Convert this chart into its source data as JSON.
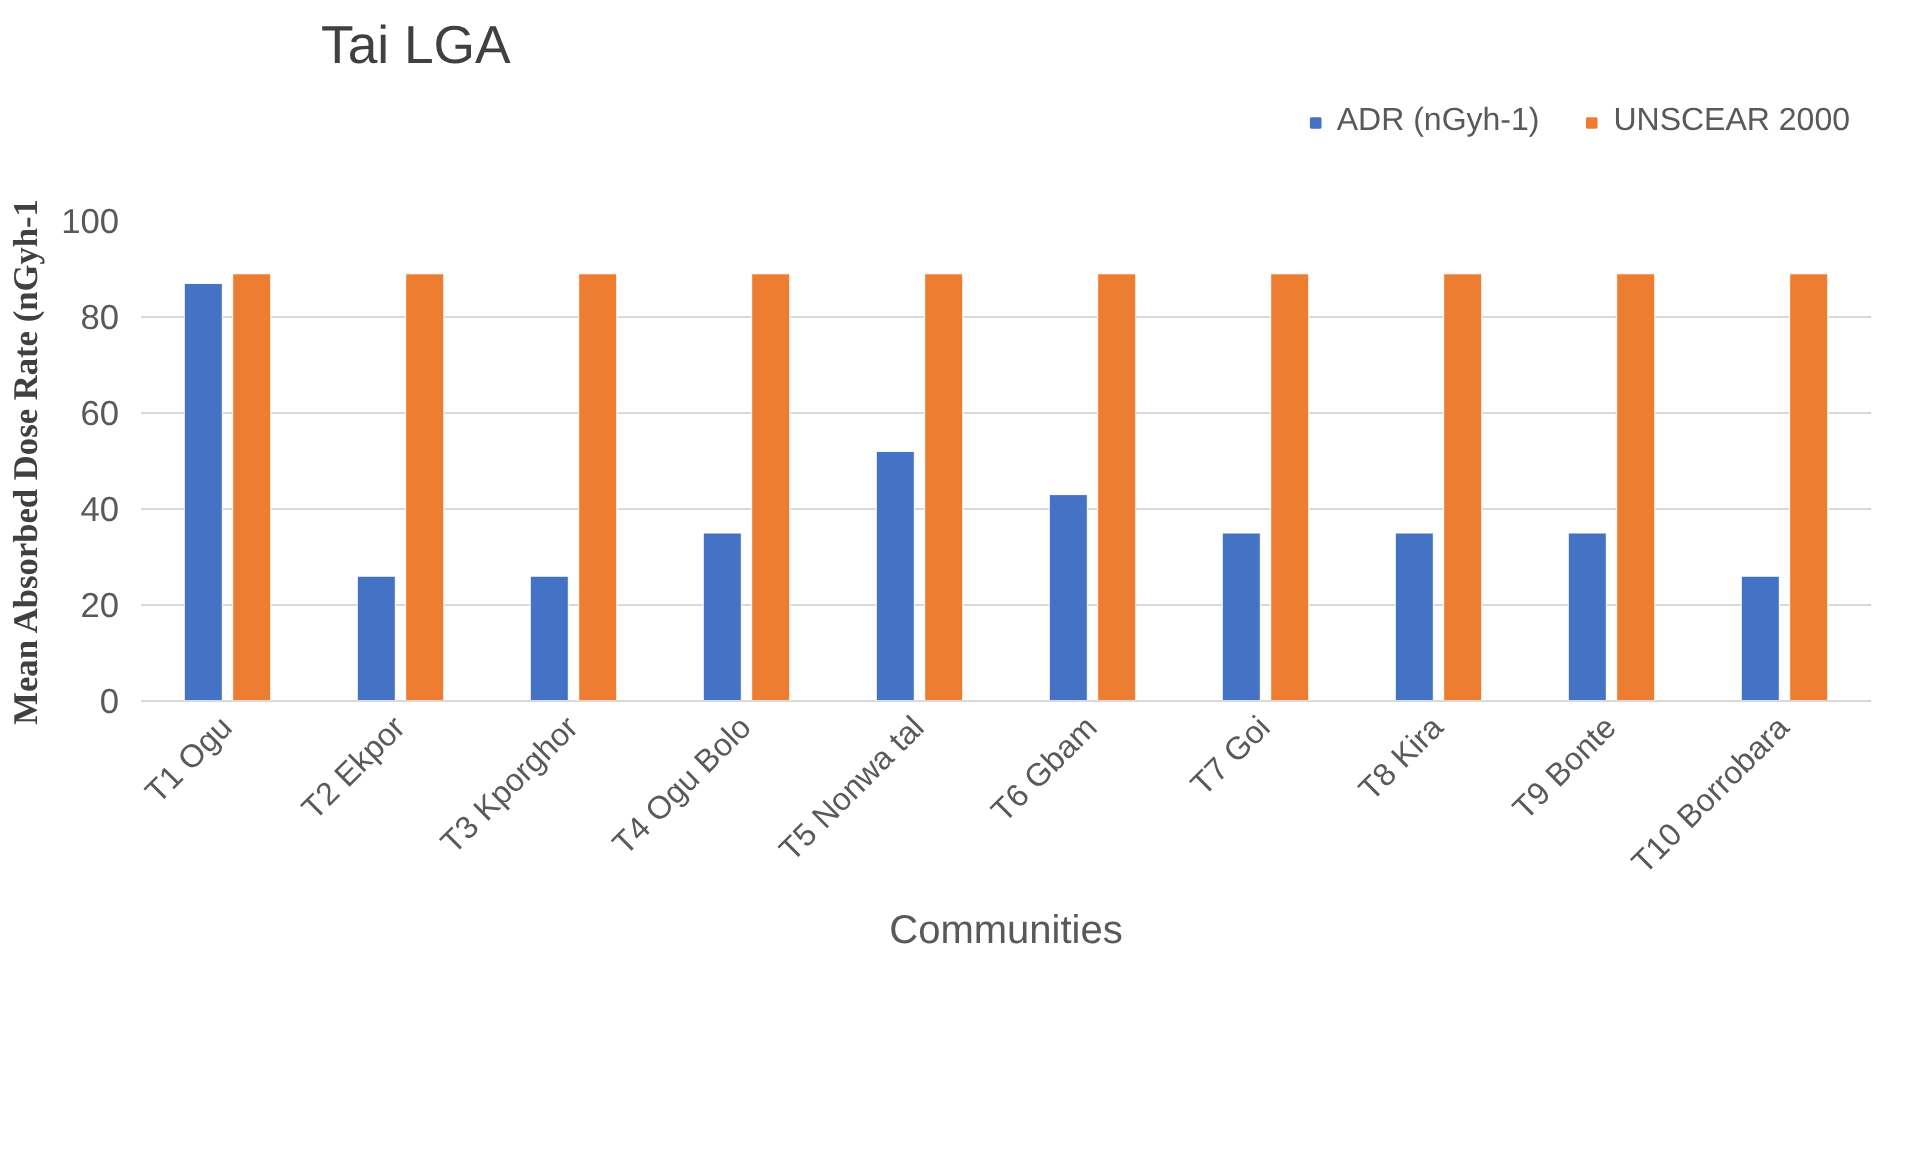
{
  "chart_data": {
    "type": "bar",
    "title": "Tai LGA",
    "xlabel": "Communities",
    "ylabel": "Mean Absorbed Dose Rate (nGyh-1",
    "categories": [
      "T1 Ogu",
      "T2 Ekpor",
      "T3 Kporghor",
      "T4 Ogu Bolo",
      "T5 Nonwa tal",
      "T6 Gbam",
      "T7 Goi",
      "T8 Kira",
      "T9 Bonte",
      "T10 Borrobara"
    ],
    "series": [
      {
        "name": "ADR (nGyh-1)",
        "color": "#4472c4",
        "values": [
          87,
          26,
          26,
          35,
          52,
          43,
          35,
          35,
          35,
          26
        ]
      },
      {
        "name": "UNSCEAR 2000",
        "color": "#ed7d31",
        "values": [
          89,
          89,
          89,
          89,
          89,
          89,
          89,
          89,
          89,
          89
        ]
      }
    ],
    "ylim": [
      0,
      100
    ],
    "yticks": [
      0,
      20,
      40,
      60,
      80,
      100
    ],
    "grid": "y",
    "legend": "top right"
  }
}
